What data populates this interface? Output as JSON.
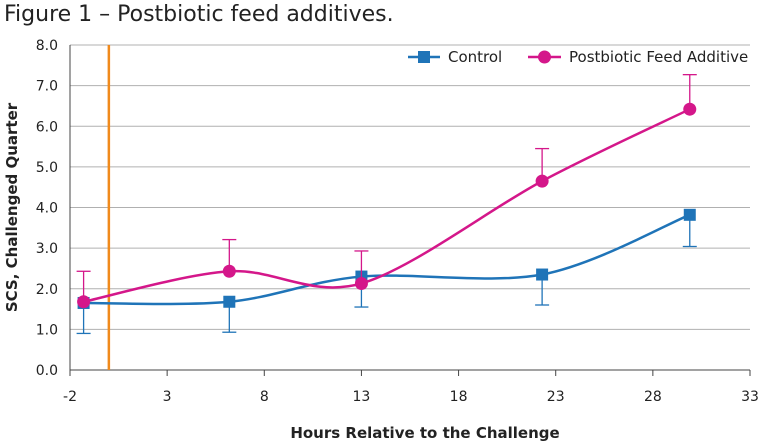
{
  "figure_title": "Figure 1 – Postbiotic feed additives.",
  "chart_data": {
    "type": "line",
    "title": "",
    "xlabel": "Hours Relative to the Challenge",
    "ylabel": "SCS, Challenged Quarter",
    "xlim": [
      -2,
      33
    ],
    "ylim": [
      0,
      8
    ],
    "x_ticks": [
      -2,
      3,
      8,
      13,
      18,
      23,
      28,
      33
    ],
    "y_ticks": [
      0.0,
      1.0,
      2.0,
      3.0,
      4.0,
      5.0,
      6.0,
      7.0,
      8.0
    ],
    "grid": "horizontal",
    "legend_position": "top-right",
    "challenge_marker_x": 0,
    "series": [
      {
        "name": "Control",
        "color": "#1f74b8",
        "marker": "square",
        "points": [
          {
            "x": -1.3,
            "y": 1.65,
            "err_low": 0.75
          },
          {
            "x": 6.2,
            "y": 1.68,
            "err_low": 0.75
          },
          {
            "x": 13.0,
            "y": 2.3,
            "err_low": 0.75
          },
          {
            "x": 22.3,
            "y": 2.35,
            "err_low": 0.75
          },
          {
            "x": 29.9,
            "y": 3.82,
            "err_low": 0.78
          }
        ]
      },
      {
        "name": "Postbiotic Feed Additive",
        "color": "#d4178a",
        "marker": "circle",
        "points": [
          {
            "x": -1.3,
            "y": 1.68,
            "err_high": 0.75
          },
          {
            "x": 6.2,
            "y": 2.43,
            "err_high": 0.78
          },
          {
            "x": 13.0,
            "y": 2.13,
            "err_high": 0.8
          },
          {
            "x": 22.3,
            "y": 4.65,
            "err_high": 0.8
          },
          {
            "x": 29.9,
            "y": 6.42,
            "err_high": 0.85
          }
        ]
      }
    ]
  },
  "colors": {
    "grid": "#b0b0b0",
    "axis": "#444444",
    "challenge_line": "#f08a1c",
    "text": "#222222"
  }
}
